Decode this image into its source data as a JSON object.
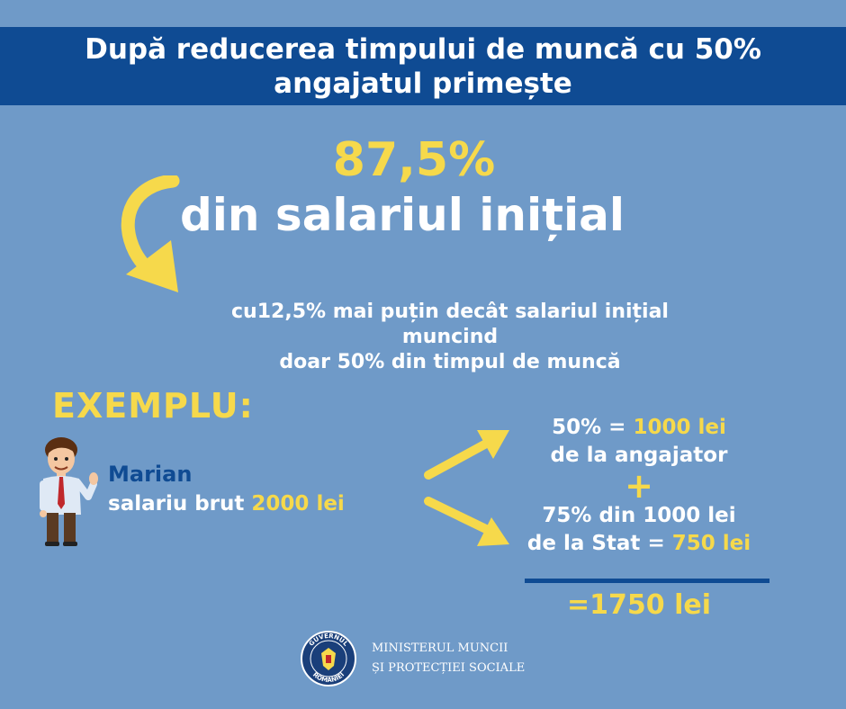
{
  "banner": {
    "line1": "După reducerea timpului de muncă cu 50%",
    "line2": "angajatul primește"
  },
  "headline": {
    "percent": "87,5%",
    "text": "din salariul inițial"
  },
  "subtitle": {
    "line1": "cu12,5% mai puțin decât salariul inițial",
    "line2": "muncind",
    "line3": "doar 50% din timpul de muncă"
  },
  "example": {
    "label": "EXEMPLU:",
    "name": "Marian",
    "salary_prefix": "salariu brut",
    "salary_value": "2000 lei"
  },
  "calculation": {
    "employer_pct": "50% =",
    "employer_amount": "1000 lei",
    "employer_source": "de la angajator",
    "plus": "+",
    "state_pct": "75% din 1000 lei",
    "state_source": "de la Stat =",
    "state_amount": "750 lei",
    "total": "=1750 lei"
  },
  "footer": {
    "seal_top": "GUVERNUL",
    "seal_bottom": "ROMÂNIEI",
    "ministry_line1": "MINISTERUL MUNCII",
    "ministry_line2": "ȘI PROTECȚIEI SOCIALE"
  },
  "colors": {
    "background": "#6f9ac8",
    "banner": "#0f4b93",
    "accent_yellow": "#f6d94b",
    "text": "#ffffff"
  },
  "icons": [
    "curved-arrow-icon",
    "arrow-up-right-icon",
    "arrow-down-right-icon",
    "man-illustration",
    "government-seal-icon"
  ]
}
